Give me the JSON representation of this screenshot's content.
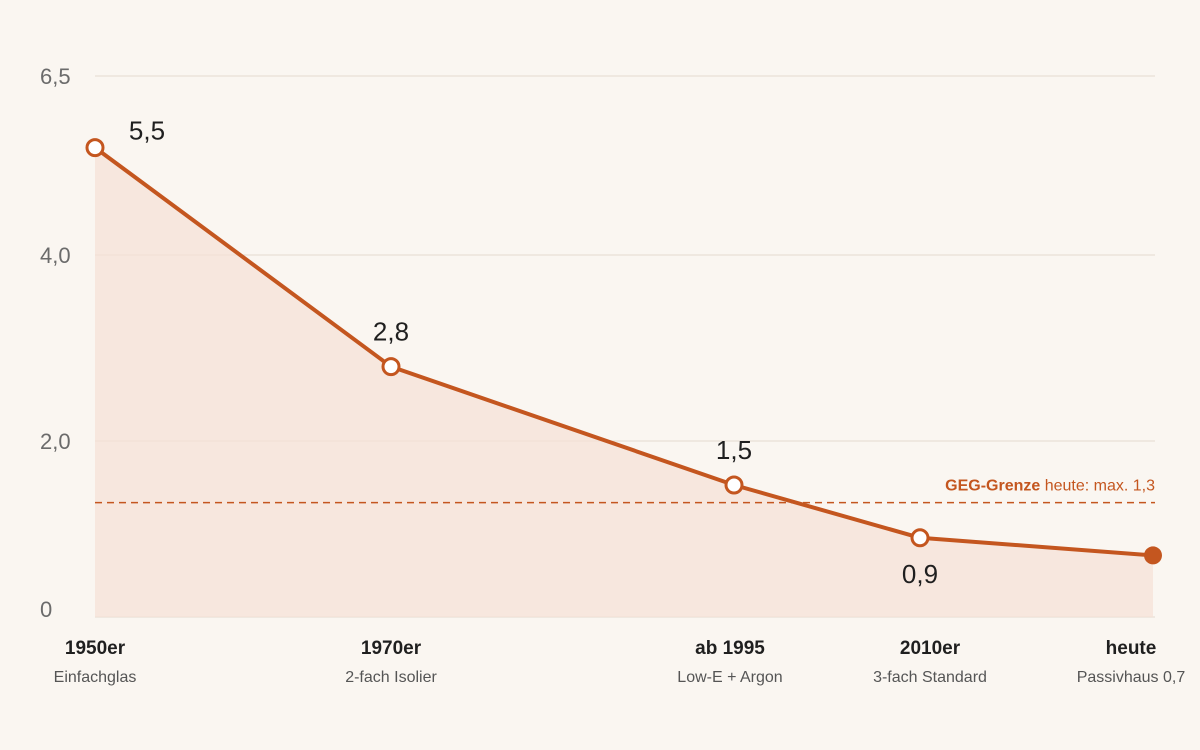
{
  "chart_data": {
    "type": "line",
    "y_ticks": [
      {
        "value": 6.5,
        "label": "6,5"
      },
      {
        "value": 4.0,
        "label": "4,0"
      },
      {
        "value": 2.0,
        "label": "2,0"
      },
      {
        "value": 0,
        "label": "0"
      }
    ],
    "categories": [
      "1950er",
      "1970er",
      "ab 1995",
      "2010er",
      "heute"
    ],
    "subtitles": [
      "Einfachglas",
      "2-fach Isolier",
      "Low-E + Argon",
      "3-fach Standard",
      "Passivhaus 0,7"
    ],
    "values": [
      5.5,
      2.8,
      1.5,
      0.9,
      0.7
    ],
    "value_labels": [
      "5,5",
      "2,8",
      "1,5",
      "0,9",
      ""
    ],
    "highlight_last": true,
    "reference_line": {
      "value": 1.3,
      "label_bold": "GEG-Grenze",
      "label_rest": " heute: max. 1,3",
      "style": "dashed"
    },
    "grid": true,
    "area_fill": true
  },
  "colors": {
    "accent": "#c4561f",
    "area": "#f5e1d6",
    "grid": "#e4dbd0",
    "background": "#faf6f1"
  }
}
